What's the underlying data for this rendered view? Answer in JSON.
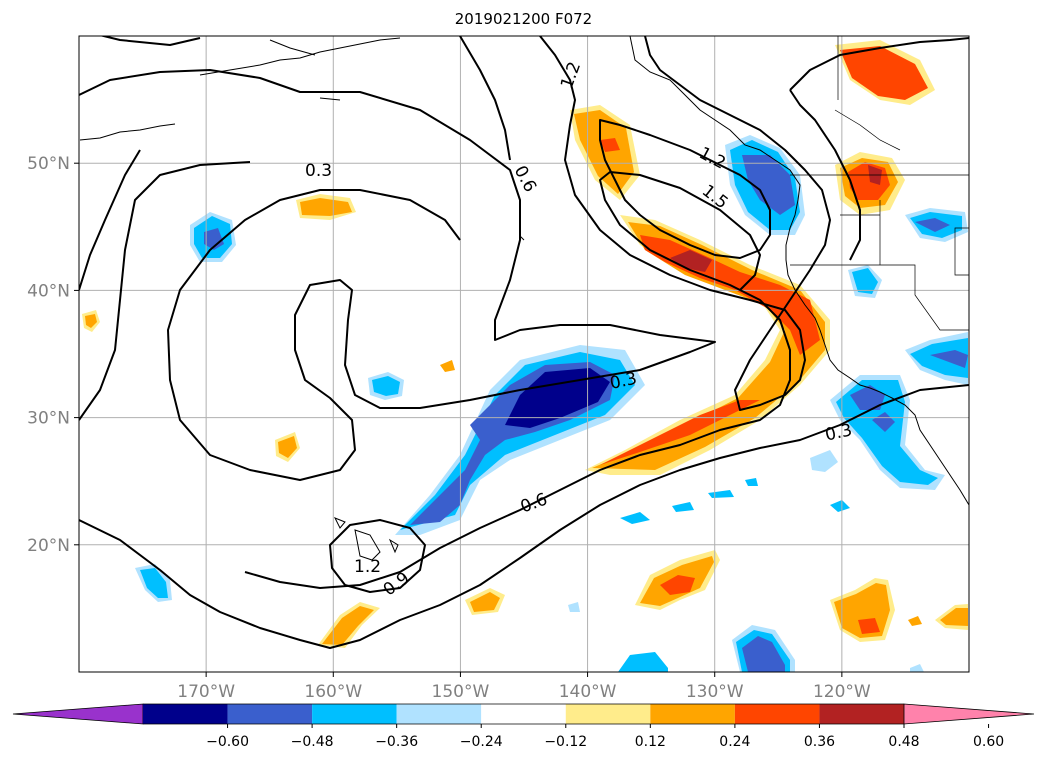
{
  "title": "2019021200 F072",
  "map": {
    "lon_range": [
      -180,
      -110
    ],
    "lat_range": [
      10,
      60
    ],
    "lon_ticks": [
      {
        "value": -170,
        "label": "170°W"
      },
      {
        "value": -160,
        "label": "160°W"
      },
      {
        "value": -150,
        "label": "150°W"
      },
      {
        "value": -140,
        "label": "140°W"
      },
      {
        "value": -130,
        "label": "130°W"
      },
      {
        "value": -120,
        "label": "120°W"
      }
    ],
    "lat_ticks": [
      {
        "value": 20,
        "label": "20°N"
      },
      {
        "value": 30,
        "label": "30°N"
      },
      {
        "value": 40,
        "label": "40°N"
      },
      {
        "value": 50,
        "label": "50°N"
      }
    ],
    "grid": true,
    "tick_label_color": "#808080"
  },
  "contour_labels": [
    "0.3",
    "0.6",
    "0.9",
    "1.2",
    "1.5"
  ],
  "colorbar": {
    "orientation": "horizontal",
    "extend": "both",
    "levels": [
      "−0.60",
      "−0.48",
      "−0.36",
      "−0.24",
      "−0.12",
      "0.12",
      "0.24",
      "0.36",
      "0.48",
      "0.60"
    ],
    "colors": [
      "#9932cc",
      "#00008b",
      "#3a5fcd",
      "#00bfff",
      "#b0e2ff",
      "#ffffff",
      "#ffec8b",
      "#ffa500",
      "#ff4500",
      "#b22222",
      "#ff82ab"
    ]
  }
}
